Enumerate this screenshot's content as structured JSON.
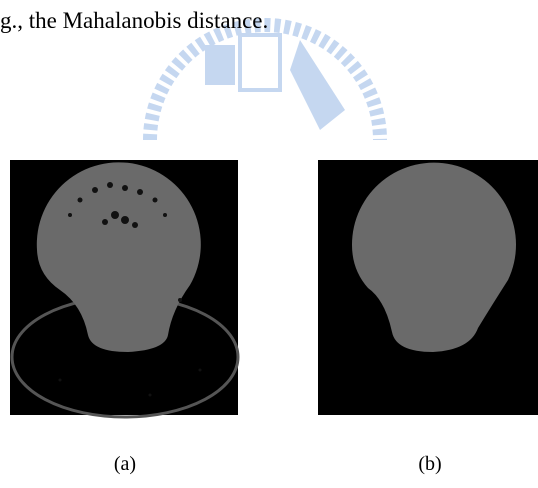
{
  "text": "g., the Mahalanobis distance.",
  "figures": [
    {
      "label": "(a)"
    },
    {
      "label": "(b)"
    }
  ]
}
